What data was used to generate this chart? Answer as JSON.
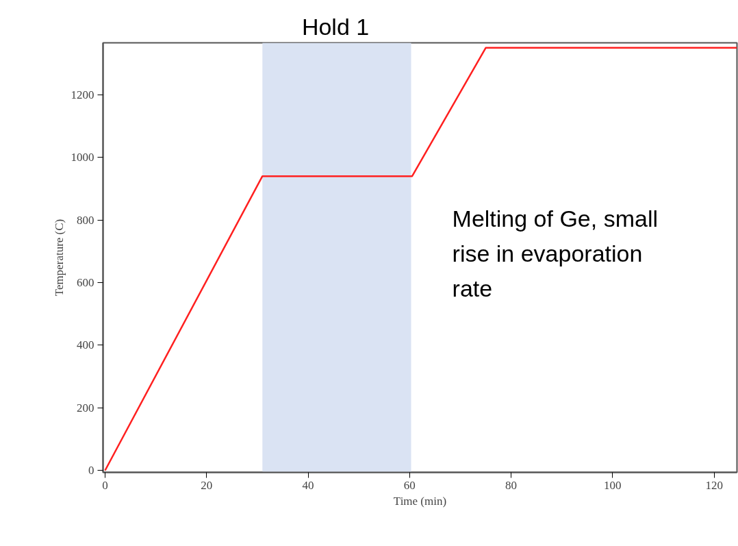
{
  "chart_data": {
    "type": "line",
    "xlabel": "Time (min)",
    "ylabel": "Temperature (C)",
    "x": [
      0,
      31,
      60.5,
      75,
      124.5
    ],
    "series": [
      {
        "color": "#ff2020",
        "values": [
          0,
          940,
          940,
          1350,
          1350
        ]
      }
    ],
    "xlim": [
      -0.4,
      124.5
    ],
    "ylim": [
      -6,
      1366
    ],
    "xticks": [
      0,
      20,
      40,
      60,
      80,
      100,
      120
    ],
    "yticks": [
      0,
      200,
      400,
      600,
      800,
      1000,
      1200
    ],
    "bands": [
      {
        "axis": "x",
        "from": 31,
        "to": 60.3,
        "label": "Hold 1",
        "color": "#dae3f3"
      }
    ],
    "annotations": [
      "Melting of Ge, small rise in evaporation rate"
    ],
    "grid": false,
    "marker": "none",
    "line_style": "solid"
  }
}
